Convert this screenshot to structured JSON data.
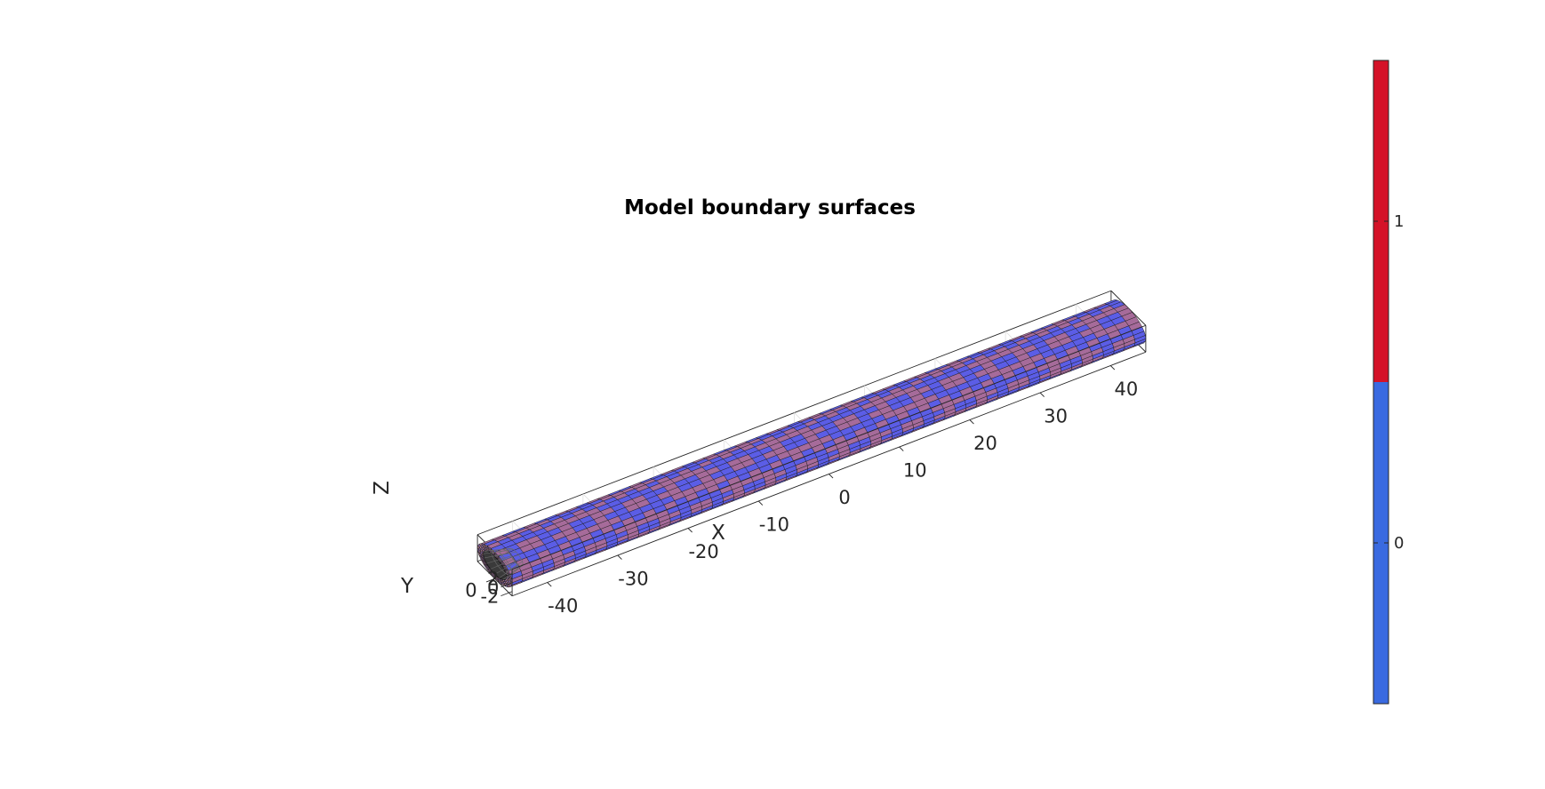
{
  "chart_data": {
    "type": "surface3d",
    "title": "Model boundary surfaces",
    "xlabel": "X",
    "ylabel": "Y",
    "zlabel": "Z",
    "xlim": [
      -45,
      45
    ],
    "ylim": [
      -3,
      3
    ],
    "zlim": [
      -3,
      3
    ],
    "x_ticks": [
      -40,
      -30,
      -20,
      -10,
      0,
      10,
      20,
      30,
      40
    ],
    "x_tick_labels": [
      "-40",
      "-30",
      "-20",
      "-10",
      "0",
      "10",
      "20",
      "30",
      "40"
    ],
    "y_ticks": [
      0
    ],
    "y_tick_labels": [
      "0"
    ],
    "z_ticks": [
      2,
      0,
      -2
    ],
    "z_tick_labels": [
      "2",
      "0",
      "-2"
    ],
    "surface": {
      "shape": "hollow cylinder (tube) along X",
      "x_range": [
        -45,
        45
      ],
      "outer_radius": 3,
      "inner_radius": 2,
      "colors": [
        "#5b5de6",
        "#a66b9a"
      ]
    },
    "colorbar": {
      "ticks": [
        0,
        1
      ],
      "tick_labels": [
        "0",
        "1"
      ],
      "colors": [
        "#3a6ae0",
        "#d41228"
      ],
      "range": [
        -0.5,
        1.5
      ]
    },
    "grid": true,
    "box": true
  }
}
